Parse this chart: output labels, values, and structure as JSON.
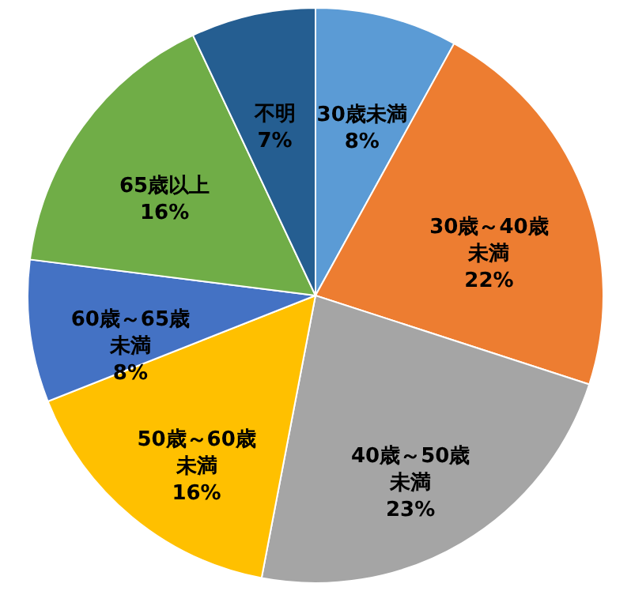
{
  "chart_data": {
    "type": "pie",
    "categories": [
      "30歳未満",
      "30歳～40歳未満",
      "40歳～50歳未満",
      "50歳～60歳未満",
      "60歳～65歳未満",
      "65歳以上",
      "不明"
    ],
    "values": [
      8,
      22,
      23,
      16,
      8,
      16,
      7
    ],
    "colors": [
      "#5b9bd5",
      "#ed7d31",
      "#a5a5a5",
      "#ffc000",
      "#4472c4",
      "#70ad47",
      "#255e91"
    ],
    "value_labels": [
      "8%",
      "22%",
      "23%",
      "16%",
      "8%",
      "16%",
      "7%"
    ]
  }
}
